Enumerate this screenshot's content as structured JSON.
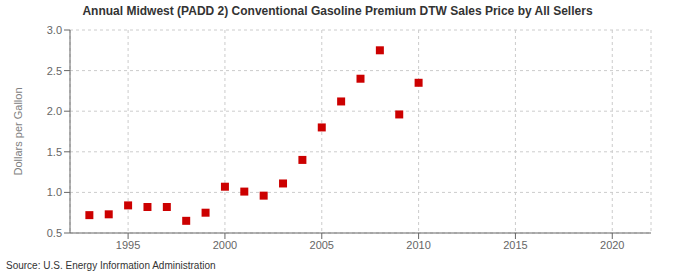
{
  "chart_data": {
    "type": "scatter",
    "title": "Annual Midwest (PADD 2) Conventional Gasoline Premium DTW Sales Price by All Sellers",
    "ylabel": "Dollars per Gallon",
    "source": "Source: U.S. Energy Information Administration",
    "x": [
      1993,
      1994,
      1995,
      1996,
      1997,
      1998,
      1999,
      2000,
      2001,
      2002,
      2003,
      2004,
      2005,
      2006,
      2007,
      2008,
      2009,
      2010
    ],
    "values": [
      0.72,
      0.73,
      0.84,
      0.82,
      0.82,
      0.65,
      0.75,
      1.07,
      1.01,
      0.96,
      1.11,
      1.4,
      1.8,
      2.12,
      2.4,
      2.75,
      1.96,
      2.35
    ],
    "color": "#cc0000",
    "marker": "square",
    "xlim": [
      1992,
      2022
    ],
    "ylim": [
      0.5,
      3.0
    ],
    "xticks": [
      1995,
      2000,
      2005,
      2010,
      2015,
      2020
    ],
    "yticks": [
      0.5,
      {
        "value": 1,
        "label": "1.0"
      },
      1.5,
      {
        "value": 2,
        "label": "2.0"
      },
      2.5,
      {
        "value": 3,
        "label": "3.0"
      }
    ],
    "grid": true
  }
}
